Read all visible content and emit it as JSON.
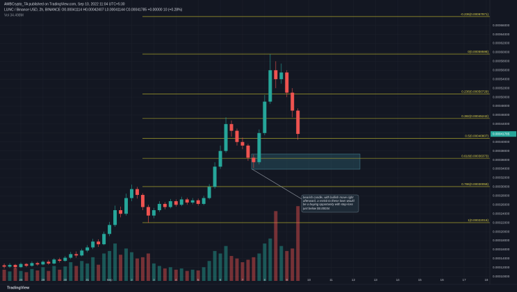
{
  "header": {
    "publisher": "AMBCrypto_TA published on TradingView.com, Sep 10, 2022 11:04 UTC+5:30",
    "symbol": "LUNC / Binance USD, 2h, BINANCE  O0.00041114  H0.00042407  L0.00041144  C0.00041785  +0.00000 10 (+0.28%)",
    "volume": "Vol  34.498M",
    "logo": "TradingView"
  },
  "annotation": "bearish candle, with bullish move right afterward. a revisit to these lows would be a buying opportunity with stop-loss just below $0.00034",
  "chart_data": {
    "type": "candlestick",
    "up_color": "#26a69a",
    "down_color": "#ef5350",
    "grid": true,
    "xlim": [
      -0.94,
      21.16
    ],
    "ylim": [
      8.72e-05,
      0.0007166
    ],
    "y2lim": [
      0,
      320
    ],
    "xticks": [
      {
        "value": 0,
        "label": "28"
      },
      {
        "value": 1,
        "label": "29"
      },
      {
        "value": 2,
        "label": "30"
      },
      {
        "value": 3,
        "label": "31"
      },
      {
        "value": 4,
        "label": "Sep"
      },
      {
        "value": 5,
        "label": "2"
      },
      {
        "value": 6,
        "label": "3"
      },
      {
        "value": 7,
        "label": "4"
      },
      {
        "value": 8,
        "label": "5"
      },
      {
        "value": 9,
        "label": "6"
      },
      {
        "value": 10,
        "label": "7"
      },
      {
        "value": 11,
        "label": "8"
      },
      {
        "value": 12,
        "label": "9"
      },
      {
        "value": 13,
        "label": "10"
      },
      {
        "value": 14,
        "label": "11"
      },
      {
        "value": 15,
        "label": "12"
      },
      {
        "value": 16,
        "label": "13"
      },
      {
        "value": 17,
        "label": "14"
      },
      {
        "value": 18,
        "label": "15"
      },
      {
        "value": 19,
        "label": "16"
      },
      {
        "value": 20,
        "label": "17"
      },
      {
        "value": 21,
        "label": "18"
      }
    ],
    "yticks": [
      {
        "value": 0.0001,
        "label": "0.00010000"
      },
      {
        "value": 0.00012,
        "label": "0.00012000"
      },
      {
        "value": 0.00014,
        "label": "0.00014000"
      },
      {
        "value": 0.00016,
        "label": "0.00016000"
      },
      {
        "value": 0.00018,
        "label": "0.00018000"
      },
      {
        "value": 0.0002,
        "label": "0.00020000"
      },
      {
        "value": 0.00022,
        "label": "0.00022000"
      },
      {
        "value": 0.00024,
        "label": "0.00024000"
      },
      {
        "value": 0.00026,
        "label": "0.00026000"
      },
      {
        "value": 0.00028,
        "label": "0.00028000"
      },
      {
        "value": 0.0003,
        "label": "0.00030000"
      },
      {
        "value": 0.00032,
        "label": "0.00032000"
      },
      {
        "value": 0.00034,
        "label": "0.00034000"
      },
      {
        "value": 0.00036,
        "label": "0.00036000"
      },
      {
        "value": 0.00038,
        "label": "0.00038000"
      },
      {
        "value": 0.0004,
        "label": "0.00040000"
      },
      {
        "value": 0.00042,
        "label": "0.00042000"
      },
      {
        "value": 0.00044,
        "label": "0.00044000"
      },
      {
        "value": 0.00046,
        "label": "0.00046000"
      },
      {
        "value": 0.00048,
        "label": "0.00048000"
      },
      {
        "value": 0.0005,
        "label": "0.00050000"
      },
      {
        "value": 0.00052,
        "label": "0.00052000"
      },
      {
        "value": 0.00054,
        "label": "0.00054000"
      },
      {
        "value": 0.00056,
        "label": "0.00056000"
      },
      {
        "value": 0.00058,
        "label": "0.00058000"
      },
      {
        "value": 0.0006,
        "label": "0.00060000"
      },
      {
        "value": 0.00062,
        "label": "0.00062000"
      },
      {
        "value": 0.00064,
        "label": "0.00064000"
      },
      {
        "value": 0.00066,
        "label": "0.00066000"
      }
    ],
    "last_price": 0.00041785,
    "fib_color": "#a7a02c",
    "fib_levels": [
      {
        "label": "-0.236(0.00067971)",
        "price": 0.00067971
      },
      {
        "label": "0(0.00059598)",
        "price": 0.00059598
      },
      {
        "label": "0.236(0.00050729)",
        "price": 0.00050729
      },
      {
        "label": "0.382(0.00045242)",
        "price": 0.00045242
      },
      {
        "label": "0.5(0.00040807)",
        "price": 0.00040807
      },
      {
        "label": "0.618(0.00036373)",
        "price": 0.00036373
      },
      {
        "label": "0.786(0.00030059)",
        "price": 0.00030059
      },
      {
        "label": "1(0.00022016)",
        "price": 0.00022016
      }
    ],
    "x": [
      -0.75,
      -0.5,
      -0.25,
      0,
      0.25,
      0.5,
      0.75,
      1,
      1.25,
      1.5,
      1.75,
      2,
      2.25,
      2.5,
      2.75,
      3,
      3.25,
      3.5,
      3.75,
      4,
      4.25,
      4.5,
      4.75,
      5,
      5.25,
      5.5,
      5.75,
      6,
      6.25,
      6.5,
      6.75,
      7,
      7.25,
      7.5,
      7.75,
      8,
      8.25,
      8.5,
      8.75,
      9,
      9.25,
      9.5,
      9.75,
      10,
      10.25,
      10.5,
      10.75,
      11,
      11.25,
      11.5,
      11.75,
      12,
      12.25,
      12.5
    ],
    "open": [
      0.000125,
      0.000122,
      0.000126,
      0.000121,
      0.000128,
      0.000124,
      0.00013,
      0.000127,
      0.000133,
      0.000129,
      0.000138,
      0.000135,
      0.000142,
      0.00015,
      0.000147,
      0.000158,
      0.000165,
      0.000178,
      0.000172,
      0.000195,
      0.000215,
      0.000248,
      0.00024,
      0.000275,
      0.000295,
      0.000282,
      0.000255,
      0.000236,
      0.000248,
      0.000262,
      0.000255,
      0.000268,
      0.00026,
      0.000272,
      0.000265,
      0.00027,
      0.000262,
      0.000275,
      0.0003,
      0.000345,
      0.00038,
      0.00044,
      0.000425,
      0.0004,
      0.000392,
      0.000365,
      0.000355,
      0.00042,
      0.00049,
      0.00056,
      0.00054,
      0.000555,
      0.00051,
      0.00047
    ],
    "high": [
      0.000129,
      0.00013,
      0.000128,
      0.000131,
      0.00013,
      0.000134,
      0.000133,
      0.000136,
      0.000137,
      0.000141,
      0.000142,
      0.000146,
      0.000155,
      0.000156,
      0.000162,
      0.00017,
      0.000184,
      0.000183,
      0.0002,
      0.000222,
      0.000258,
      0.000256,
      0.000285,
      0.000305,
      0.0003,
      0.000286,
      0.00026,
      0.000253,
      0.000268,
      0.000266,
      0.000273,
      0.000272,
      0.000278,
      0.000276,
      0.000275,
      0.000274,
      0.00028,
      0.000306,
      0.000355,
      0.000392,
      0.000455,
      0.000448,
      0.00043,
      0.00041,
      0.000396,
      0.000372,
      0.000428,
      0.000505,
      0.000596,
      0.00058,
      0.000575,
      0.00056,
      0.00052,
      0.000475
    ],
    "low": [
      0.000118,
      0.000119,
      0.000117,
      0.000119,
      0.000121,
      0.000122,
      0.000124,
      0.000125,
      0.000126,
      0.000127,
      0.000131,
      0.000133,
      0.000139,
      0.000142,
      0.000145,
      0.000154,
      0.000161,
      0.000166,
      0.00017,
      0.00019,
      0.000211,
      0.000232,
      0.000236,
      0.000268,
      0.000274,
      0.000248,
      0.00022,
      0.00023,
      0.000244,
      0.00025,
      0.000252,
      0.000256,
      0.000257,
      0.00026,
      0.000261,
      0.000258,
      0.000259,
      0.000272,
      0.000296,
      0.00034,
      0.000376,
      0.000412,
      0.000392,
      0.000384,
      0.000358,
      0.000342,
      0.00035,
      0.000415,
      0.000485,
      0.00052,
      0.00053,
      0.0005,
      0.000455,
      0.000405
    ],
    "close": [
      0.000122,
      0.000126,
      0.000121,
      0.000128,
      0.000124,
      0.00013,
      0.000127,
      0.000133,
      0.000129,
      0.000138,
      0.000135,
      0.000142,
      0.00015,
      0.000147,
      0.000158,
      0.000165,
      0.000178,
      0.000172,
      0.000195,
      0.000215,
      0.000248,
      0.00024,
      0.000275,
      0.000295,
      0.000282,
      0.000255,
      0.000236,
      0.000248,
      0.000262,
      0.000255,
      0.000268,
      0.00026,
      0.000272,
      0.000265,
      0.00027,
      0.000262,
      0.000275,
      0.0003,
      0.000345,
      0.00038,
      0.00044,
      0.000425,
      0.0004,
      0.000392,
      0.000365,
      0.000355,
      0.00042,
      0.00049,
      0.00056,
      0.00054,
      0.000555,
      0.00051,
      0.00047,
      0.000418
    ],
    "volume": [
      45,
      38,
      52,
      40,
      35,
      48,
      42,
      55,
      40,
      60,
      45,
      58,
      75,
      60,
      80,
      70,
      95,
      65,
      110,
      120,
      150,
      105,
      130,
      115,
      90,
      95,
      110,
      70,
      60,
      50,
      55,
      45,
      50,
      40,
      45,
      42,
      55,
      80,
      120,
      110,
      140,
      100,
      90,
      75,
      85,
      95,
      110,
      150,
      170,
      280,
      140,
      120,
      130,
      300
    ]
  }
}
